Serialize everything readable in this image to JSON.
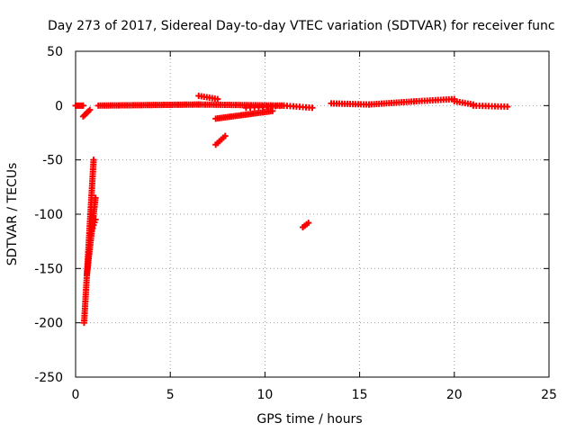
{
  "chart_data": {
    "type": "scatter",
    "title": "Day 273 of 2017, Sidereal Day-to-day VTEC variation (SDTVAR) for receiver func",
    "xlabel": "GPS time / hours",
    "ylabel": "SDTVAR / TECUs",
    "xlim": [
      0,
      25
    ],
    "ylim": [
      -250,
      50
    ],
    "xticks": [
      0,
      5,
      10,
      15,
      20,
      25
    ],
    "yticks": [
      50,
      0,
      -50,
      -100,
      -150,
      -200,
      -250
    ],
    "grid": true,
    "marker": "+",
    "color": "#ff0000",
    "series": [
      {
        "name": "SDTVAR",
        "segments": [
          {
            "x0": 0.0,
            "x1": 0.4,
            "y0": 0,
            "y1": 0,
            "n": 6
          },
          {
            "x0": 0.4,
            "x1": 0.75,
            "y0": -10,
            "y1": -4,
            "n": 6
          },
          {
            "x0": 1.2,
            "x1": 6.5,
            "y0": 0,
            "y1": 1,
            "n": 50
          },
          {
            "x0": 6.5,
            "x1": 7.5,
            "y0": 9,
            "y1": 6,
            "n": 8
          },
          {
            "x0": 6.5,
            "x1": 11.0,
            "y0": 1,
            "y1": 0,
            "n": 40
          },
          {
            "x0": 7.4,
            "x1": 10.4,
            "y0": -12,
            "y1": -5,
            "n": 30
          },
          {
            "x0": 9.0,
            "x1": 11.0,
            "y0": -2,
            "y1": 0,
            "n": 10
          },
          {
            "x0": 7.4,
            "x1": 7.9,
            "y0": -36,
            "y1": -28,
            "n": 6
          },
          {
            "x0": 11.0,
            "x1": 12.5,
            "y0": 0,
            "y1": -2,
            "n": 10
          },
          {
            "x0": 13.5,
            "x1": 15.5,
            "y0": 2,
            "y1": 1,
            "n": 15
          },
          {
            "x0": 15.5,
            "x1": 18.0,
            "y0": 1,
            "y1": 4,
            "n": 20
          },
          {
            "x0": 18.0,
            "x1": 20.0,
            "y0": 4,
            "y1": 6,
            "n": 15
          },
          {
            "x0": 20.0,
            "x1": 21.0,
            "y0": 4,
            "y1": 1,
            "n": 8
          },
          {
            "x0": 21.0,
            "x1": 22.8,
            "y0": 0,
            "y1": -1,
            "n": 12
          },
          {
            "x0": 0.45,
            "x1": 0.95,
            "y0": -200,
            "y1": -50,
            "n": 70
          },
          {
            "x0": 0.6,
            "x1": 1.05,
            "y0": -155,
            "y1": -85,
            "n": 35
          },
          {
            "x0": 0.8,
            "x1": 1.05,
            "y0": -118,
            "y1": -105,
            "n": 6
          },
          {
            "x0": 12.0,
            "x1": 12.3,
            "y0": -112,
            "y1": -108,
            "n": 4
          }
        ]
      }
    ]
  }
}
